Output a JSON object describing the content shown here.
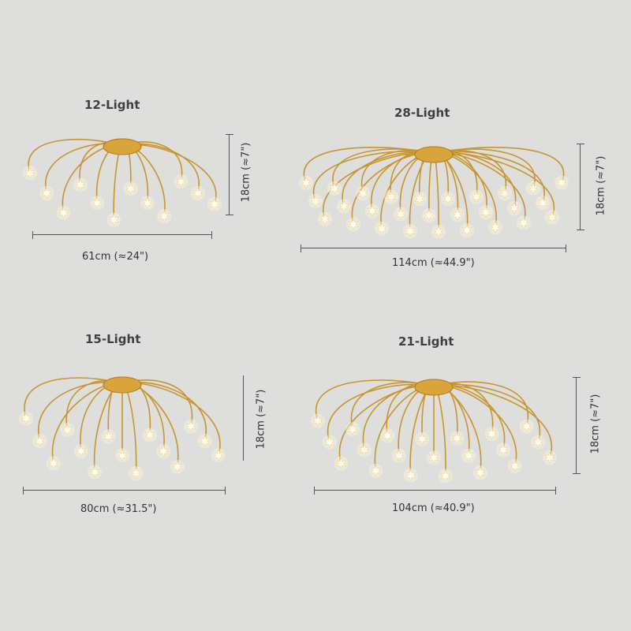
{
  "variants": [
    {
      "title": "12-Light",
      "width_label": "61cm (≈24\")",
      "height_label": "18cm (≈7\")",
      "lights": 12
    },
    {
      "title": "28-Light",
      "width_label": "114cm (≈44.9\")",
      "height_label": "18cm (≈7\")",
      "lights": 28
    },
    {
      "title": "15-Light",
      "width_label": "80cm (≈31.5\")",
      "height_label": "18cm (≈7\")",
      "lights": 15
    },
    {
      "title": "21-Light",
      "width_label": "104cm (≈40.9\")",
      "height_label": "18cm (≈7\")",
      "lights": 21
    }
  ],
  "colors": {
    "background": "#dededd",
    "gold": "#c8952e",
    "star": "#fffbe8",
    "line": "#555555"
  }
}
